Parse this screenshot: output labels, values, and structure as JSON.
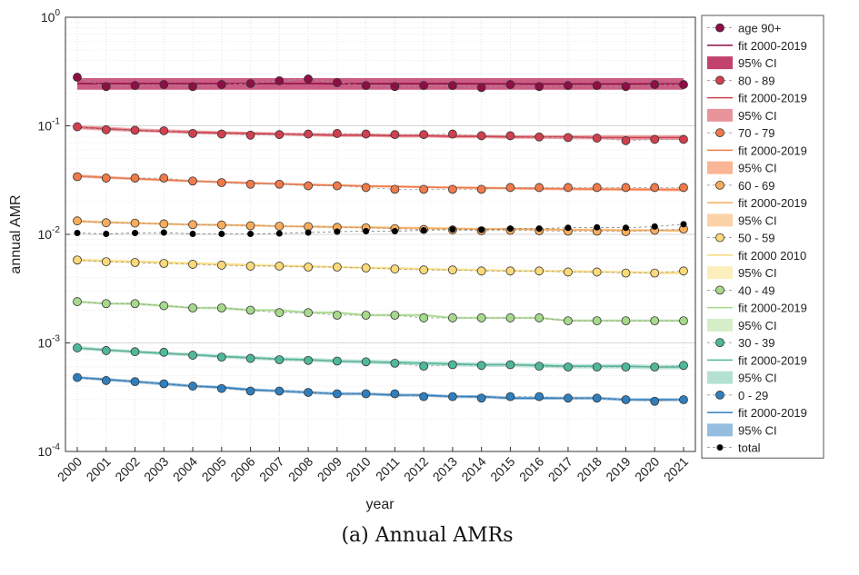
{
  "chart_data": {
    "type": "line",
    "xlabel": "year",
    "ylabel": "annual AMR",
    "yscale": "log",
    "ylim": [
      0.0001,
      1
    ],
    "xlim": [
      2000,
      2021
    ],
    "grid": true,
    "legend_placement": "right",
    "y_tick_labels": [
      {
        "base": "10",
        "exp": "-4",
        "value": 0.0001
      },
      {
        "base": "10",
        "exp": "-3",
        "value": 0.001
      },
      {
        "base": "10",
        "exp": "-2",
        "value": 0.01
      },
      {
        "base": "10",
        "exp": "-1",
        "value": 0.1
      },
      {
        "base": "10",
        "exp": "0",
        "value": 1
      }
    ],
    "x": [
      2000,
      2001,
      2002,
      2003,
      2004,
      2005,
      2006,
      2007,
      2008,
      2009,
      2010,
      2011,
      2012,
      2013,
      2014,
      2015,
      2016,
      2017,
      2018,
      2019,
      2020,
      2021
    ],
    "x_tick_labels": [
      "2000",
      "2001",
      "2002",
      "2003",
      "2004",
      "2005",
      "2006",
      "2007",
      "2008",
      "2009",
      "2010",
      "2011",
      "2012",
      "2013",
      "2014",
      "2015",
      "2016",
      "2017",
      "2018",
      "2019",
      "2020",
      "2021"
    ],
    "series": [
      {
        "name": "age 90+",
        "fit_label": "fit 2000-2019",
        "ci_label": "95% CI",
        "color": "#8e0e45",
        "ci_color": "#c2416e",
        "values": [
          0.28,
          0.23,
          0.235,
          0.24,
          0.23,
          0.24,
          0.245,
          0.26,
          0.27,
          0.25,
          0.235,
          0.23,
          0.235,
          0.235,
          0.225,
          0.24,
          0.23,
          0.235,
          0.235,
          0.23,
          0.24,
          0.24
        ],
        "fit": [
          0.245,
          0.245,
          0.245,
          0.245,
          0.245,
          0.245,
          0.245,
          0.245,
          0.245,
          0.244,
          0.244,
          0.244,
          0.244,
          0.244,
          0.244,
          0.243,
          0.243,
          0.243,
          0.243,
          0.243,
          0.243,
          0.243
        ],
        "ci_lower": [
          0.215,
          0.215,
          0.215,
          0.215,
          0.215,
          0.215,
          0.215,
          0.215,
          0.215,
          0.215,
          0.215,
          0.215,
          0.215,
          0.215,
          0.215,
          0.215,
          0.215,
          0.215,
          0.215,
          0.215,
          0.215,
          0.215
        ],
        "ci_upper": [
          0.275,
          0.275,
          0.275,
          0.275,
          0.275,
          0.275,
          0.275,
          0.275,
          0.275,
          0.275,
          0.275,
          0.275,
          0.275,
          0.275,
          0.275,
          0.275,
          0.275,
          0.275,
          0.275,
          0.275,
          0.275,
          0.275
        ]
      },
      {
        "name": "80 - 89",
        "fit_label": "fit 2000-2019",
        "ci_label": "95% CI",
        "color": "#d0404e",
        "ci_color": "#e9949a",
        "values": [
          0.098,
          0.092,
          0.091,
          0.09,
          0.085,
          0.084,
          0.082,
          0.083,
          0.084,
          0.085,
          0.084,
          0.083,
          0.083,
          0.084,
          0.081,
          0.081,
          0.079,
          0.078,
          0.077,
          0.073,
          0.075,
          0.075
        ],
        "fit": [
          0.097,
          0.094,
          0.091,
          0.089,
          0.087,
          0.086,
          0.085,
          0.084,
          0.083,
          0.082,
          0.082,
          0.081,
          0.081,
          0.08,
          0.08,
          0.079,
          0.079,
          0.079,
          0.078,
          0.078,
          0.078,
          0.078
        ],
        "ci_lower": [
          0.093,
          0.09,
          0.088,
          0.086,
          0.084,
          0.083,
          0.082,
          0.081,
          0.08,
          0.079,
          0.079,
          0.078,
          0.078,
          0.077,
          0.077,
          0.076,
          0.076,
          0.075,
          0.075,
          0.074,
          0.074,
          0.074
        ],
        "ci_upper": [
          0.101,
          0.098,
          0.095,
          0.093,
          0.091,
          0.089,
          0.088,
          0.087,
          0.086,
          0.085,
          0.085,
          0.084,
          0.084,
          0.083,
          0.083,
          0.082,
          0.082,
          0.082,
          0.082,
          0.082,
          0.082,
          0.082
        ]
      },
      {
        "name": "70 - 79",
        "fit_label": "fit 2000-2019",
        "ci_label": "95% CI",
        "color": "#f07a4a",
        "ci_color": "#f9b595",
        "values": [
          0.034,
          0.033,
          0.033,
          0.033,
          0.031,
          0.03,
          0.029,
          0.029,
          0.028,
          0.028,
          0.027,
          0.026,
          0.026,
          0.026,
          0.026,
          0.027,
          0.027,
          0.027,
          0.027,
          0.027,
          0.027,
          0.027
        ],
        "fit": [
          0.0345,
          0.0335,
          0.0325,
          0.0317,
          0.031,
          0.0303,
          0.0297,
          0.0292,
          0.0287,
          0.0283,
          0.0279,
          0.0276,
          0.0273,
          0.027,
          0.0268,
          0.0266,
          0.0264,
          0.0262,
          0.0261,
          0.026,
          0.0259,
          0.0258
        ],
        "ci_lower": [
          0.0333,
          0.0324,
          0.0316,
          0.0308,
          0.0302,
          0.0295,
          0.029,
          0.0285,
          0.028,
          0.0276,
          0.0272,
          0.0269,
          0.0266,
          0.0263,
          0.026,
          0.0258,
          0.0256,
          0.0254,
          0.0252,
          0.0251,
          0.025,
          0.0249
        ],
        "ci_upper": [
          0.0357,
          0.0346,
          0.0335,
          0.0326,
          0.0318,
          0.0311,
          0.0305,
          0.0299,
          0.0294,
          0.029,
          0.0286,
          0.0283,
          0.028,
          0.0277,
          0.0275,
          0.0273,
          0.0272,
          0.027,
          0.0269,
          0.0268,
          0.0267,
          0.0267
        ]
      },
      {
        "name": "60 - 69",
        "fit_label": "fit 2000-2019",
        "ci_label": "95% CI",
        "color": "#f7ad5c",
        "ci_color": "#fcd3a8",
        "values": [
          0.0133,
          0.0128,
          0.0127,
          0.0125,
          0.0123,
          0.0122,
          0.012,
          0.0119,
          0.0118,
          0.0116,
          0.0115,
          0.0113,
          0.0111,
          0.011,
          0.0108,
          0.0109,
          0.0108,
          0.0107,
          0.0107,
          0.0106,
          0.0109,
          0.0112
        ],
        "fit": [
          0.0132,
          0.0129,
          0.0127,
          0.0125,
          0.0123,
          0.0122,
          0.0121,
          0.0119,
          0.0118,
          0.0117,
          0.0116,
          0.0115,
          0.0114,
          0.0113,
          0.0112,
          0.0112,
          0.0111,
          0.011,
          0.011,
          0.0109,
          0.0109,
          0.0108
        ],
        "ci_lower": [
          0.0128,
          0.0126,
          0.0124,
          0.0122,
          0.012,
          0.0119,
          0.0118,
          0.0116,
          0.0115,
          0.0114,
          0.0113,
          0.0112,
          0.0111,
          0.011,
          0.0109,
          0.0109,
          0.0108,
          0.0107,
          0.0107,
          0.0106,
          0.0106,
          0.0105
        ],
        "ci_upper": [
          0.0136,
          0.0133,
          0.013,
          0.0128,
          0.0126,
          0.0125,
          0.0124,
          0.0122,
          0.0121,
          0.012,
          0.0119,
          0.0118,
          0.0117,
          0.0116,
          0.0115,
          0.0115,
          0.0114,
          0.0113,
          0.0113,
          0.0112,
          0.0112,
          0.0111
        ]
      },
      {
        "name": "50 - 59",
        "fit_label": "fit 2000 2010",
        "ci_label": "95% CI",
        "color": "#fad978",
        "ci_color": "#fdeebd",
        "values": [
          0.0058,
          0.0056,
          0.0055,
          0.0054,
          0.0053,
          0.0052,
          0.0051,
          0.0051,
          0.005,
          0.005,
          0.0049,
          0.0048,
          0.0047,
          0.0047,
          0.0046,
          0.0046,
          0.0046,
          0.0045,
          0.0045,
          0.0044,
          0.0044,
          0.0046
        ],
        "fit": [
          0.0058,
          0.0057,
          0.0056,
          0.0055,
          0.0054,
          0.0053,
          0.0052,
          0.0051,
          0.0051,
          0.005,
          0.0049,
          0.0049,
          0.0048,
          0.0047,
          0.0047,
          0.0046,
          0.0046,
          0.0046,
          0.0045,
          0.0045,
          0.0044,
          0.0044
        ],
        "ci_lower": [
          0.0056,
          0.0055,
          0.0054,
          0.0053,
          0.0052,
          0.0051,
          0.0051,
          0.005,
          0.0049,
          0.0049,
          0.0048,
          0.0047,
          0.0047,
          0.0046,
          0.0046,
          0.0045,
          0.0045,
          0.0044,
          0.0044,
          0.0044,
          0.0043,
          0.0043
        ],
        "ci_upper": [
          0.006,
          0.0059,
          0.0058,
          0.0057,
          0.0056,
          0.0055,
          0.0054,
          0.0053,
          0.0052,
          0.0051,
          0.0051,
          0.005,
          0.0049,
          0.0049,
          0.0048,
          0.0048,
          0.0047,
          0.0047,
          0.0047,
          0.0046,
          0.0046,
          0.0046
        ]
      },
      {
        "name": "40 - 49",
        "fit_label": "fit 2000-2019",
        "ci_label": "95% CI",
        "color": "#a7d98c",
        "ci_color": "#d6eec8",
        "values": [
          0.0024,
          0.0023,
          0.0023,
          0.0022,
          0.0021,
          0.0021,
          0.002,
          0.0019,
          0.0019,
          0.0018,
          0.0018,
          0.0018,
          0.0017,
          0.0017,
          0.0017,
          0.0017,
          0.0017,
          0.0016,
          0.0016,
          0.0016,
          0.0016,
          0.0016
        ],
        "fit": [
          0.0024,
          0.0023,
          0.0023,
          0.0022,
          0.0021,
          0.0021,
          0.002,
          0.002,
          0.0019,
          0.0019,
          0.0018,
          0.0018,
          0.0018,
          0.0017,
          0.0017,
          0.0017,
          0.0017,
          0.0016,
          0.0016,
          0.0016,
          0.0016,
          0.0016
        ],
        "ci_lower": [
          0.00233,
          0.00225,
          0.00222,
          0.00213,
          0.00205,
          0.00203,
          0.00194,
          0.00194,
          0.00185,
          0.00185,
          0.00175,
          0.00175,
          0.00175,
          0.00166,
          0.00166,
          0.00166,
          0.00166,
          0.00156,
          0.00156,
          0.00156,
          0.00156,
          0.00156
        ],
        "ci_upper": [
          0.00247,
          0.00236,
          0.00237,
          0.00227,
          0.00216,
          0.00217,
          0.00206,
          0.00206,
          0.00196,
          0.00196,
          0.00186,
          0.00186,
          0.00186,
          0.00175,
          0.00175,
          0.00175,
          0.00175,
          0.00165,
          0.00165,
          0.00165,
          0.00165,
          0.00165
        ]
      },
      {
        "name": "30 - 39",
        "fit_label": "fit 2000-2019",
        "ci_label": "95% CI",
        "color": "#4fb89a",
        "ci_color": "#b4e1d2",
        "values": [
          0.0009,
          0.00085,
          0.00083,
          0.00082,
          0.00077,
          0.00074,
          0.00072,
          0.0007,
          0.00069,
          0.00068,
          0.00067,
          0.00065,
          0.00061,
          0.00063,
          0.00062,
          0.00063,
          0.00061,
          0.0006,
          0.0006,
          0.0006,
          0.0006,
          0.00062
        ],
        "fit": [
          0.0009,
          0.00086,
          0.00083,
          0.0008,
          0.00078,
          0.00075,
          0.00073,
          0.00071,
          0.0007,
          0.00068,
          0.00067,
          0.00066,
          0.00065,
          0.00064,
          0.00063,
          0.00063,
          0.00062,
          0.00061,
          0.00061,
          0.00061,
          0.0006,
          0.0006
        ],
        "ci_lower": [
          0.00086,
          0.00083,
          0.0008,
          0.00077,
          0.00075,
          0.00072,
          0.0007,
          0.00068,
          0.00067,
          0.00065,
          0.00064,
          0.00063,
          0.00062,
          0.00061,
          0.0006,
          0.0006,
          0.00059,
          0.00058,
          0.00058,
          0.00058,
          0.00057,
          0.00057
        ],
        "ci_upper": [
          0.00094,
          0.00089,
          0.00086,
          0.00083,
          0.00081,
          0.00078,
          0.00076,
          0.00074,
          0.00073,
          0.00071,
          0.0007,
          0.00069,
          0.00068,
          0.00067,
          0.00066,
          0.00066,
          0.00065,
          0.00064,
          0.00064,
          0.00064,
          0.00063,
          0.00063
        ]
      },
      {
        "name": "0 - 29",
        "fit_label": "fit 2000-2019",
        "ci_label": "95% CI",
        "color": "#2f7fbf",
        "ci_color": "#94bddf",
        "values": [
          0.00048,
          0.00045,
          0.00044,
          0.00042,
          0.0004,
          0.00038,
          0.00036,
          0.00036,
          0.00035,
          0.00034,
          0.00034,
          0.00034,
          0.00032,
          0.00032,
          0.00031,
          0.00032,
          0.00032,
          0.00031,
          0.00031,
          0.0003,
          0.00029,
          0.0003
        ],
        "fit": [
          0.00048,
          0.00046,
          0.00044,
          0.00042,
          0.0004,
          0.00039,
          0.00037,
          0.00036,
          0.00035,
          0.00034,
          0.00034,
          0.00033,
          0.00033,
          0.00032,
          0.00032,
          0.00031,
          0.00031,
          0.00031,
          0.00031,
          0.0003,
          0.0003,
          0.0003
        ],
        "ci_lower": [
          0.000465,
          0.000445,
          0.000425,
          0.000405,
          0.000387,
          0.000377,
          0.000358,
          0.000348,
          0.000338,
          0.000329,
          0.000329,
          0.000319,
          0.000319,
          0.000309,
          0.000309,
          0.0003,
          0.0003,
          0.0003,
          0.0003,
          0.00029,
          0.00029,
          0.00029
        ],
        "ci_upper": [
          0.000495,
          0.000475,
          0.000455,
          0.000435,
          0.000413,
          0.000403,
          0.000382,
          0.000372,
          0.000362,
          0.000351,
          0.000351,
          0.000341,
          0.000341,
          0.000331,
          0.000331,
          0.00032,
          0.00032,
          0.00032,
          0.00032,
          0.00031,
          0.00031,
          0.00031
        ]
      }
    ],
    "total": {
      "name": "total",
      "color": "#000000",
      "values": [
        0.0103,
        0.0101,
        0.0103,
        0.0104,
        0.0101,
        0.0101,
        0.0101,
        0.0102,
        0.0104,
        0.0106,
        0.0107,
        0.0107,
        0.0109,
        0.0111,
        0.011,
        0.0113,
        0.0113,
        0.0115,
        0.0116,
        0.0115,
        0.0118,
        0.0124
      ]
    }
  },
  "caption": "(a) Annual AMRs"
}
